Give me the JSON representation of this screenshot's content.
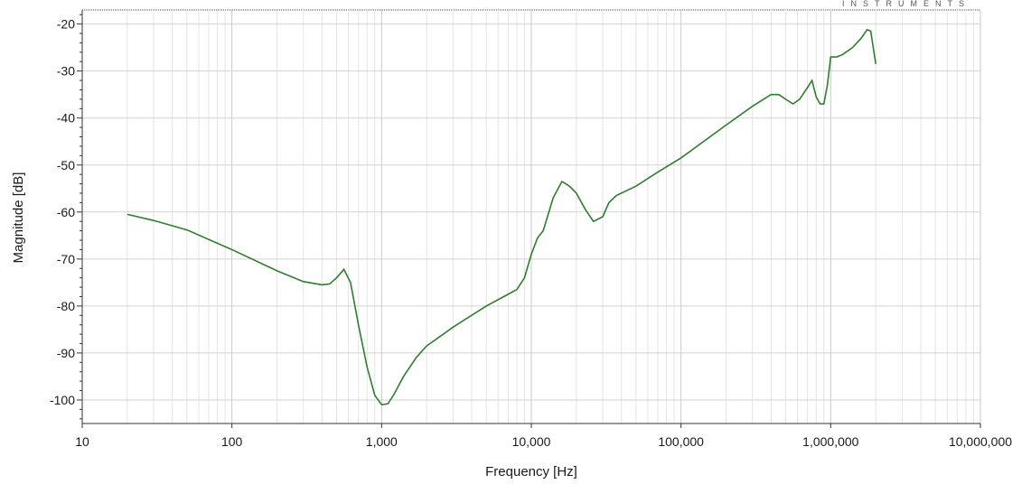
{
  "brand_text": "INSTRUMENTS",
  "chart_data": {
    "type": "line",
    "title": "",
    "xlabel": "Frequency [Hz]",
    "ylabel": "Magnitude [dB]",
    "x_scale": "log",
    "xlim": [
      10,
      10000000
    ],
    "ylim": [
      -105,
      -17
    ],
    "x_ticks": [
      10,
      100,
      1000,
      10000,
      100000,
      1000000,
      10000000
    ],
    "x_tick_labels": [
      "10",
      "100",
      "1,000",
      "10,000",
      "100,000",
      "1,000,000",
      "10,000,000"
    ],
    "y_ticks": [
      -20,
      -30,
      -40,
      -50,
      -60,
      -70,
      -80,
      -90,
      -100
    ],
    "y_tick_labels": [
      "-20",
      "-30",
      "-40",
      "-50",
      "-60",
      "-70",
      "-80",
      "-90",
      "-100"
    ],
    "grid": true,
    "line_color": "#2e7d2e",
    "series": [
      {
        "x": [
          20,
          30,
          50,
          100,
          200,
          300,
          400,
          450,
          500,
          560,
          620,
          700,
          800,
          900,
          1000,
          1100,
          1200,
          1400,
          1700,
          2000,
          3000,
          5000,
          7000,
          8000,
          9000,
          10000,
          11000,
          12000,
          14000,
          16000,
          18000,
          20000,
          23000,
          26000,
          30000,
          33000,
          37000,
          50000,
          70000,
          100000,
          200000,
          300000,
          400000,
          450000,
          500000,
          560000,
          620000,
          700000,
          750000,
          800000,
          850000,
          900000,
          950000,
          1000000,
          1100000,
          1200000,
          1400000,
          1600000,
          1750000,
          1850000,
          2000000
        ],
        "y": [
          -60.5,
          -61.8,
          -63.8,
          -68,
          -72.5,
          -74.8,
          -75.5,
          -75.3,
          -74,
          -72.2,
          -75,
          -84,
          -93,
          -99,
          -101,
          -100.8,
          -99,
          -95,
          -91,
          -88.5,
          -84.5,
          -80,
          -77.5,
          -76.5,
          -74,
          -69,
          -65.5,
          -64,
          -57,
          -53.5,
          -54.5,
          -56,
          -59.5,
          -62,
          -61,
          -58,
          -56.5,
          -54.5,
          -51.5,
          -48.5,
          -41.5,
          -37.5,
          -35,
          -35,
          -36,
          -37,
          -36,
          -33.5,
          -32,
          -35.5,
          -37,
          -37,
          -33,
          -27,
          -27,
          -26.5,
          -25,
          -23,
          -21.2,
          -21.5,
          -28.5
        ]
      }
    ]
  }
}
